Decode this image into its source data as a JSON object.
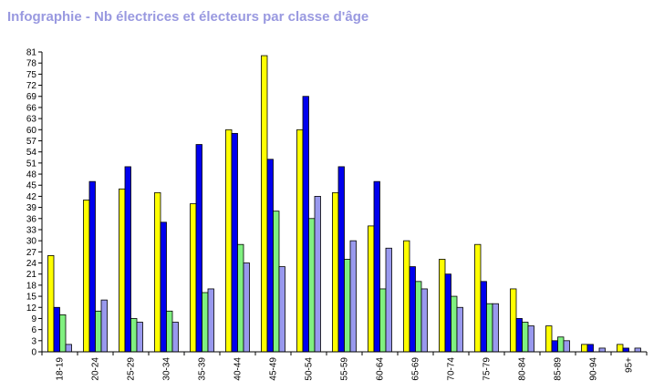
{
  "colors": {
    "title": "#9999e0",
    "axis": "#000000",
    "series": [
      "#ffff00",
      "#0000ee",
      "#80f080",
      "#9999ee"
    ]
  },
  "chart_data": {
    "type": "bar",
    "title": "Infographie - Nb électrices et électeurs par classe d'âge",
    "xlabel": "",
    "ylabel": "",
    "ylim": [
      0,
      81
    ],
    "ytick_step": 3,
    "grid": false,
    "legend": "none",
    "categories": [
      "18-19",
      "20-24",
      "25-29",
      "30-34",
      "35-39",
      "40-44",
      "45-49",
      "50-54",
      "55-59",
      "60-64",
      "65-69",
      "70-74",
      "75-79",
      "80-84",
      "85-89",
      "90-94",
      "95+"
    ],
    "series": [
      {
        "values": [
          26,
          41,
          44,
          43,
          40,
          60,
          80,
          60,
          43,
          34,
          30,
          25,
          29,
          17,
          7,
          2,
          2
        ]
      },
      {
        "values": [
          12,
          46,
          50,
          35,
          56,
          59,
          52,
          69,
          50,
          46,
          23,
          21,
          19,
          9,
          3,
          2,
          1
        ]
      },
      {
        "values": [
          10,
          11,
          9,
          11,
          16,
          29,
          38,
          36,
          25,
          17,
          19,
          15,
          13,
          8,
          4,
          0,
          0
        ]
      },
      {
        "values": [
          2,
          14,
          8,
          8,
          17,
          24,
          23,
          42,
          30,
          28,
          17,
          12,
          13,
          7,
          3,
          1,
          1
        ]
      }
    ]
  }
}
